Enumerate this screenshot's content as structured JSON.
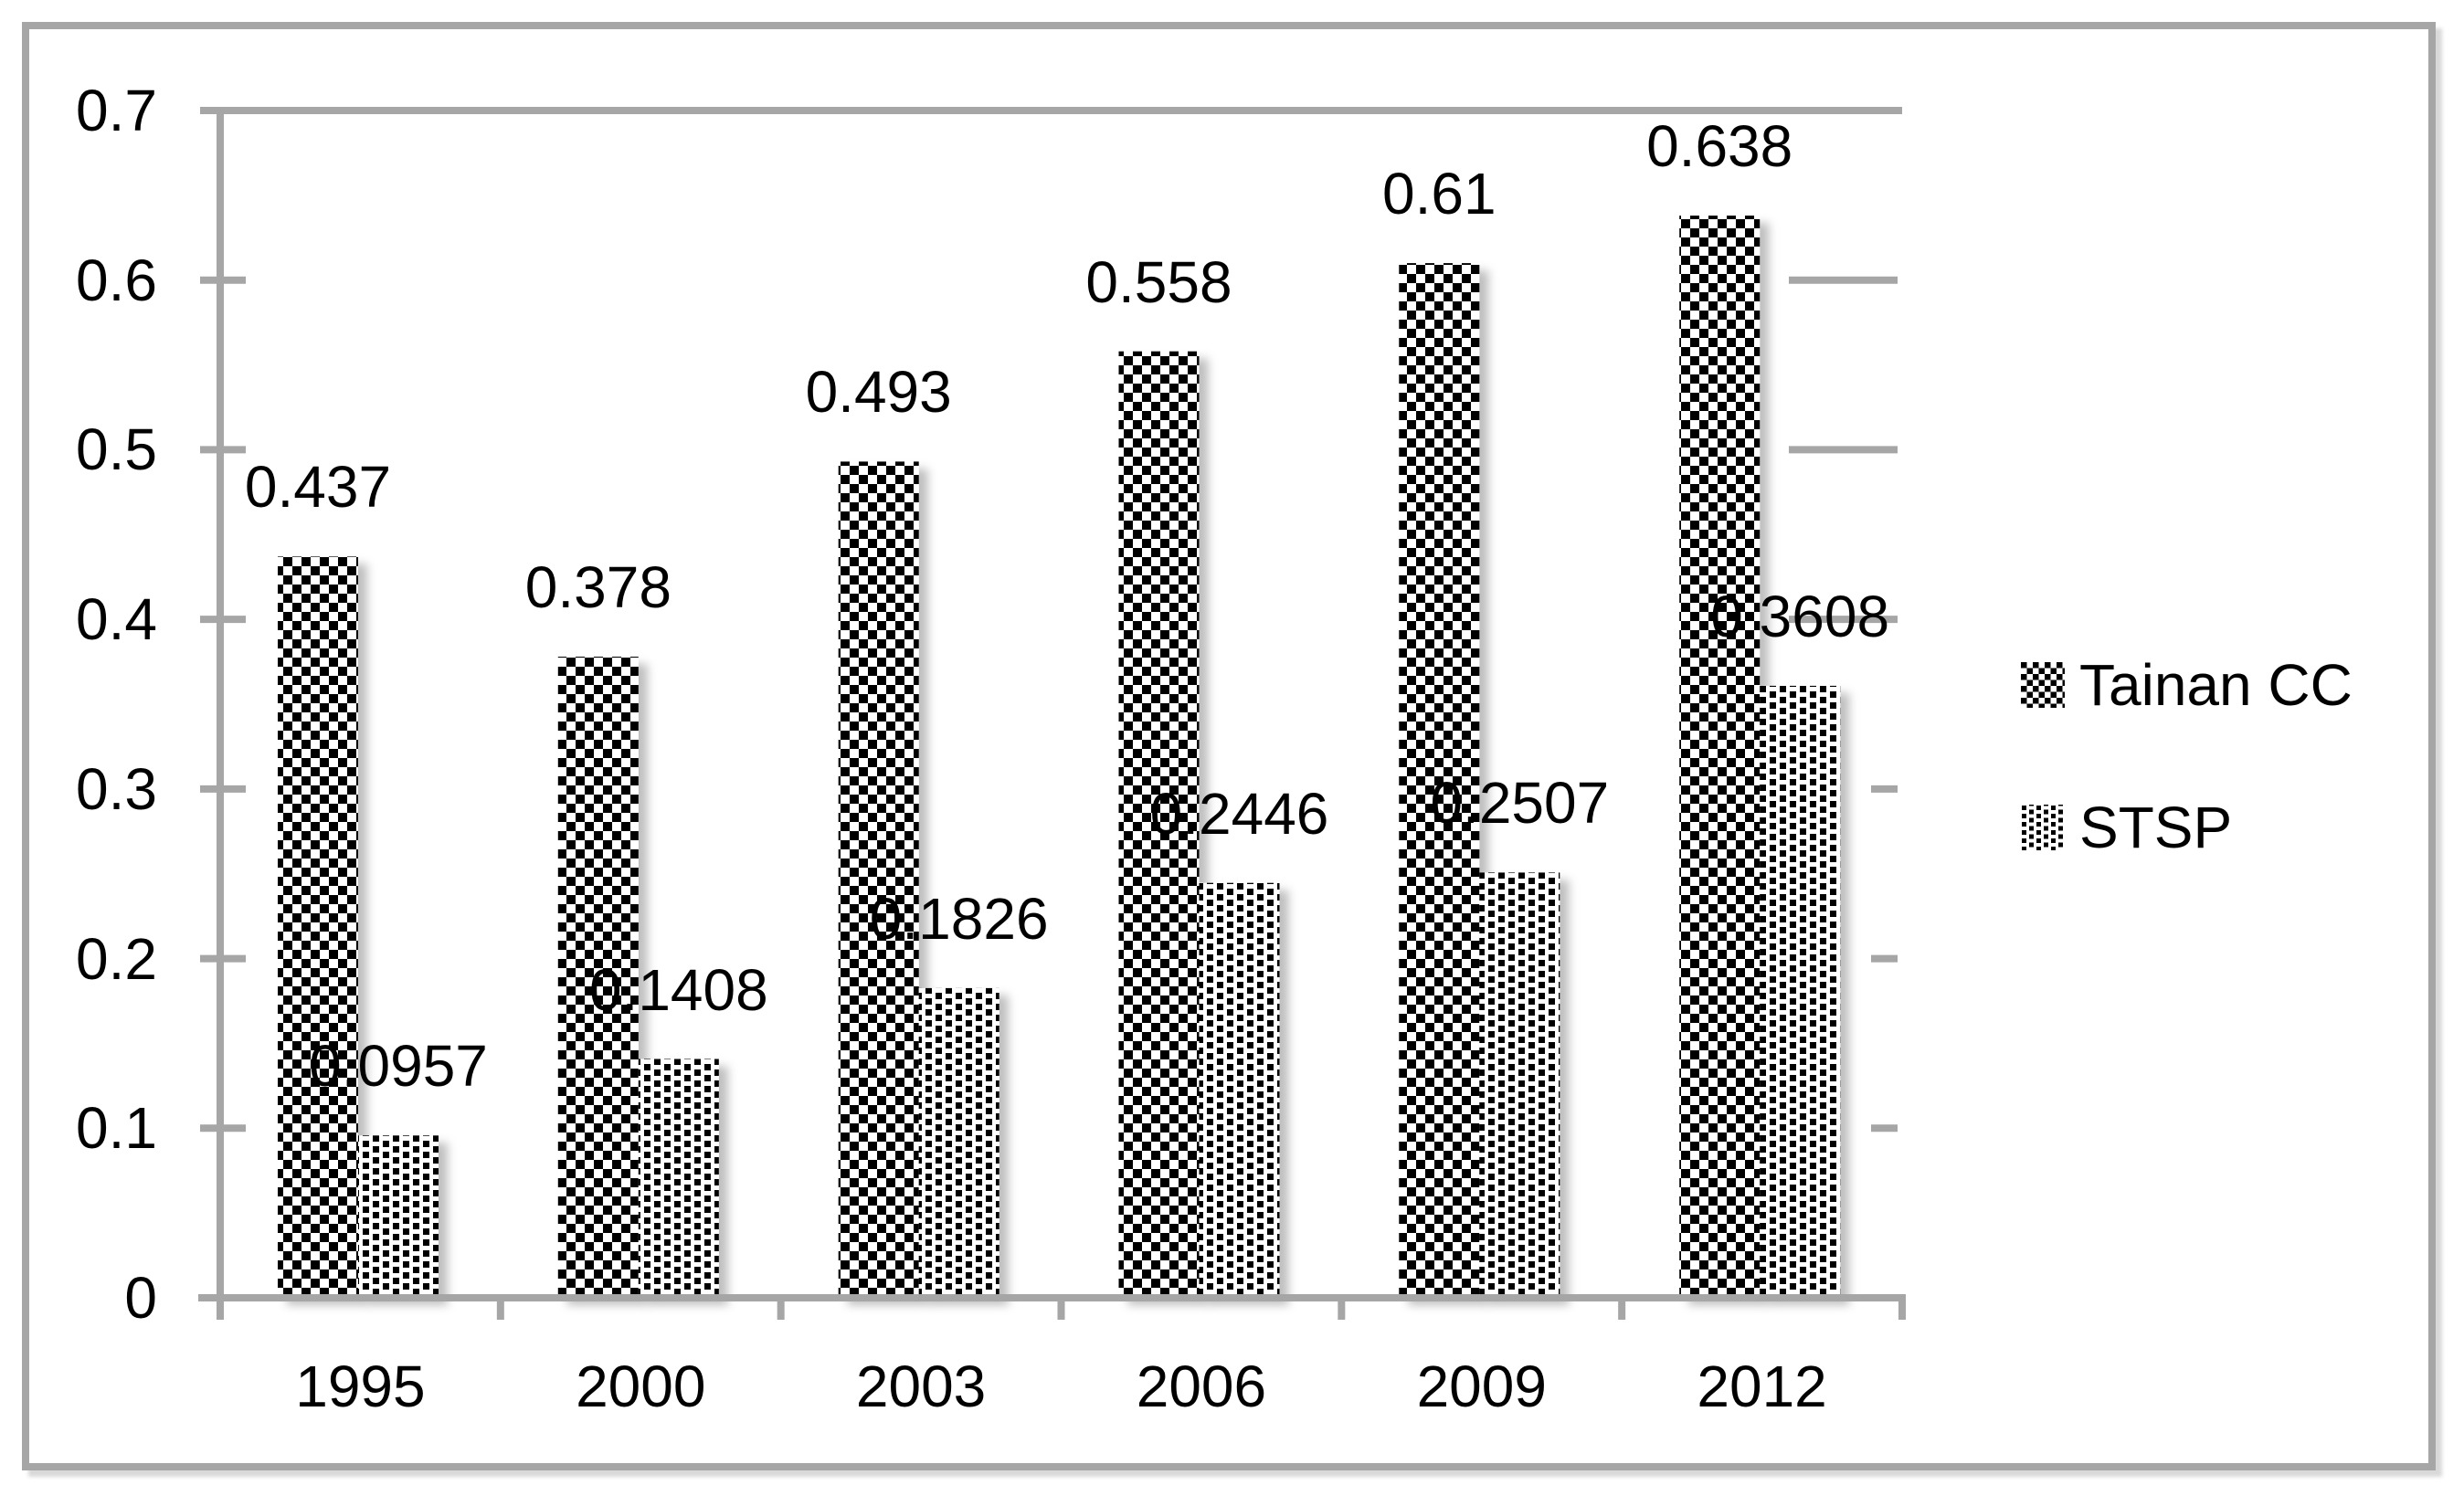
{
  "figure": {
    "background": "#ffffff",
    "border_color": "#a6a6a6",
    "axis_color": "#a6a6a6",
    "text_color": "#000000",
    "bar_foreground": "#000000",
    "bar_background": "#ffffff"
  },
  "chart_data": {
    "type": "bar",
    "title": "",
    "xlabel": "",
    "ylabel": "",
    "categories": [
      "1995",
      "2000",
      "2003",
      "2006",
      "2009",
      "2012"
    ],
    "series": [
      {
        "name": "Tainan CC",
        "pattern": "checkerboard",
        "values": [
          0.437,
          0.378,
          0.493,
          0.558,
          0.61,
          0.638
        ],
        "labels": [
          "0.437",
          "0.378",
          "0.493",
          "0.558",
          "0.61",
          "0.638"
        ]
      },
      {
        "name": "STSP",
        "pattern": "dots",
        "values": [
          0.0957,
          0.1408,
          0.1826,
          0.2446,
          0.2507,
          0.3608
        ],
        "labels": [
          "0.0957",
          "0.1408",
          "0.1826",
          "0.2446",
          "0.2507",
          "0.3608"
        ]
      }
    ],
    "ylim": [
      0,
      0.7
    ],
    "y_ticks": [
      {
        "value": 0.7,
        "label": "0.7"
      },
      {
        "value": 0.6,
        "label": "0.6"
      },
      {
        "value": 0.5,
        "label": "0.5"
      },
      {
        "value": 0.4,
        "label": "0.4"
      },
      {
        "value": 0.3,
        "label": "0.3"
      },
      {
        "value": 0.2,
        "label": "0.2"
      },
      {
        "value": 0.1,
        "label": "0.1"
      },
      {
        "value": 0,
        "label": "0"
      }
    ],
    "grid": "off",
    "legend_position": "right"
  },
  "legend": {
    "items": [
      {
        "label": "Tainan CC",
        "pattern": "checkerboard"
      },
      {
        "label": "STSP",
        "pattern": "dots"
      }
    ]
  }
}
